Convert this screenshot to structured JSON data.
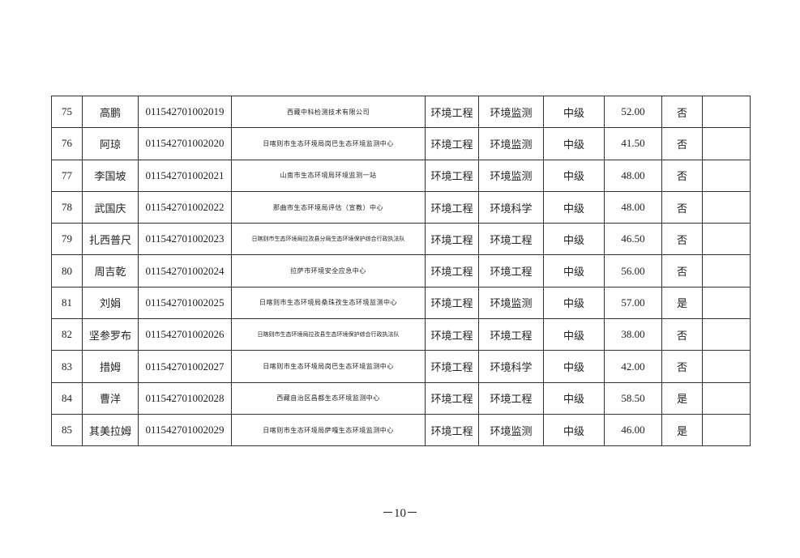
{
  "table": {
    "rows": [
      {
        "no": "75",
        "name": "高鹏",
        "id": "011542701002019",
        "org": "西藏中科检测技术有限公司",
        "major": "环境工程",
        "field": "环境监测",
        "level": "中级",
        "score": "52.00",
        "flag": "否",
        "note": ""
      },
      {
        "no": "76",
        "name": "阿琼",
        "id": "011542701002020",
        "org": "日喀则市生态环境局岗巴生态环境监测中心",
        "major": "环境工程",
        "field": "环境监测",
        "level": "中级",
        "score": "41.50",
        "flag": "否",
        "note": ""
      },
      {
        "no": "77",
        "name": "李国坡",
        "id": "011542701002021",
        "org": "山南市生态环境局环境监测一站",
        "major": "环境工程",
        "field": "环境监测",
        "level": "中级",
        "score": "48.00",
        "flag": "否",
        "note": ""
      },
      {
        "no": "78",
        "name": "武国庆",
        "id": "011542701002022",
        "org": "那曲市生态环境局评估（宣教）中心",
        "major": "环境工程",
        "field": "环境科学",
        "level": "中级",
        "score": "48.00",
        "flag": "否",
        "note": ""
      },
      {
        "no": "79",
        "name": "扎西普尺",
        "id": "011542701002023",
        "org": "日喀则市生态环境局拉孜县分局生态环境保护综合行政执法队",
        "major": "环境工程",
        "field": "环境工程",
        "level": "中级",
        "score": "46.50",
        "flag": "否",
        "note": ""
      },
      {
        "no": "80",
        "name": "周吉乾",
        "id": "011542701002024",
        "org": "拉萨市环境安全应急中心",
        "major": "环境工程",
        "field": "环境工程",
        "level": "中级",
        "score": "56.00",
        "flag": "否",
        "note": ""
      },
      {
        "no": "81",
        "name": "刘娟",
        "id": "011542701002025",
        "org": "日喀则市生态环境局桑珠孜生态环境监测中心",
        "major": "环境工程",
        "field": "环境监测",
        "level": "中级",
        "score": "57.00",
        "flag": "是",
        "note": ""
      },
      {
        "no": "82",
        "name": "坚参罗布",
        "id": "011542701002026",
        "org": "日喀则市生态环境局拉孜县生态环境保护综合行政执法队",
        "major": "环境工程",
        "field": "环境工程",
        "level": "中级",
        "score": "38.00",
        "flag": "否",
        "note": ""
      },
      {
        "no": "83",
        "name": "措姆",
        "id": "011542701002027",
        "org": "日喀则市生态环境局岗巴生态环境监测中心",
        "major": "环境工程",
        "field": "环境科学",
        "level": "中级",
        "score": "42.00",
        "flag": "否",
        "note": ""
      },
      {
        "no": "84",
        "name": "曹洋",
        "id": "011542701002028",
        "org": "西藏自治区昌都生态环境监测中心",
        "major": "环境工程",
        "field": "环境工程",
        "level": "中级",
        "score": "58.50",
        "flag": "是",
        "note": ""
      },
      {
        "no": "85",
        "name": "其美拉姆",
        "id": "011542701002029",
        "org": "日喀则市生态环境局萨嘎生态环境监测中心",
        "major": "环境工程",
        "field": "环境监测",
        "level": "中级",
        "score": "46.00",
        "flag": "是",
        "note": ""
      }
    ]
  },
  "page_number": "－10－"
}
